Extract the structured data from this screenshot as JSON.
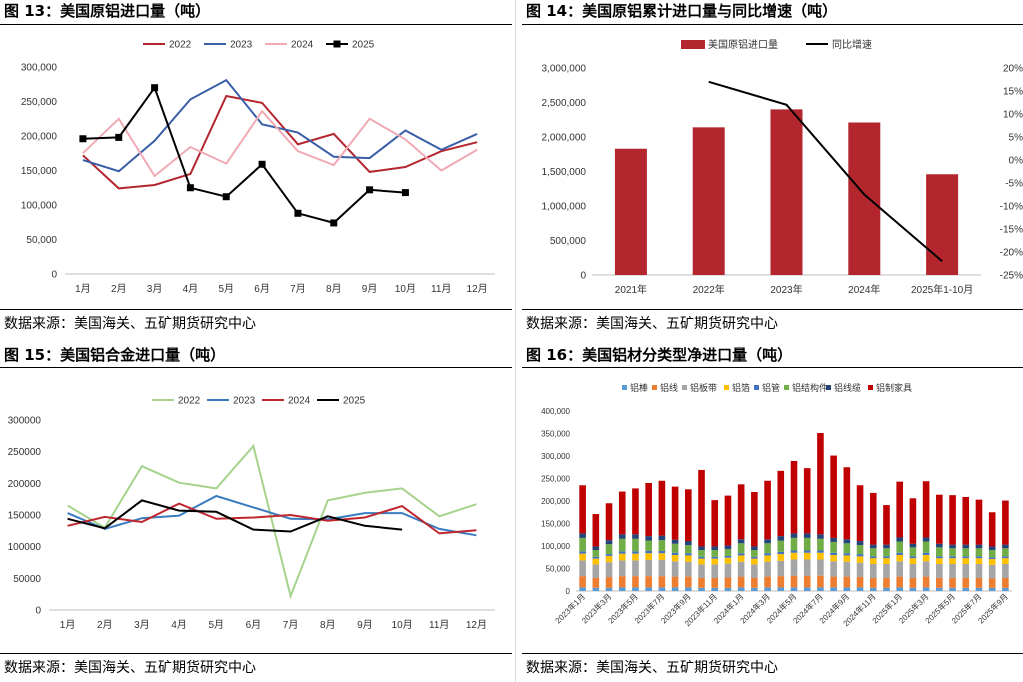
{
  "panels": {
    "p13": {
      "title": "图 13：美国原铝进口量（吨）",
      "source": "数据来源：美国海关、五矿期货研究中心"
    },
    "p14": {
      "title": "图 14：美国原铝累计进口量与同比增速（吨）",
      "source": "数据来源：美国海关、五矿期货研究中心"
    },
    "p15": {
      "title": "图 15：美国铝合金进口量（吨）",
      "source": "数据来源：美国海关、五矿期货研究中心"
    },
    "p16": {
      "title": "图 16：美国铝材分类型净进口量（吨）",
      "source": "数据来源：美国海关、五矿期货研究中心"
    }
  },
  "chart_data": [
    {
      "id": "c13",
      "type": "line",
      "categories": [
        "1月",
        "2月",
        "3月",
        "4月",
        "5月",
        "6月",
        "7月",
        "8月",
        "9月",
        "10月",
        "11月",
        "12月"
      ],
      "ylim": [
        0,
        300000
      ],
      "yticks": [
        "0",
        "50,000",
        "100,000",
        "150,000",
        "200,000",
        "250,000",
        "300,000"
      ],
      "legend_position": "top",
      "series": [
        {
          "name": "2022",
          "color": "#b3262e",
          "values": [
            172000,
            124000,
            129000,
            145000,
            258000,
            248000,
            188000,
            203000,
            148000,
            155000,
            178000,
            191000
          ]
        },
        {
          "name": "2023",
          "color": "#3a5ea8",
          "values": [
            165000,
            149000,
            193000,
            253000,
            281000,
            217000,
            205000,
            170000,
            168000,
            208000,
            180000,
            203000
          ]
        },
        {
          "name": "2024",
          "color": "#f0aab4",
          "values": [
            175000,
            225000,
            142000,
            184000,
            160000,
            236000,
            178000,
            158000,
            225000,
            195000,
            150000,
            180000
          ]
        },
        {
          "name": "2025",
          "color": "#000000",
          "marker": "square",
          "values": [
            196000,
            198000,
            270000,
            125000,
            112000,
            159000,
            88000,
            74000,
            122000,
            118000,
            null,
            null
          ]
        }
      ]
    },
    {
      "id": "c14",
      "type": "bar",
      "categories": [
        "2021年",
        "2022年",
        "2023年",
        "2024年",
        "2025年1-10月"
      ],
      "ylim": [
        0,
        3000000
      ],
      "yticks": [
        "0",
        "500,000",
        "1,000,000",
        "1,500,000",
        "2,000,000",
        "2,500,000",
        "3,000,000"
      ],
      "y2lim": [
        -25,
        20
      ],
      "y2ticks": [
        "-25%",
        "-20%",
        "-15%",
        "-10%",
        "-5%",
        "0%",
        "5%",
        "10%",
        "15%",
        "20%"
      ],
      "legend_position": "top",
      "series": [
        {
          "name": "美国原铝进口量",
          "color": "#b3262e",
          "type": "bar",
          "values": [
            1830000,
            2140000,
            2400000,
            2210000,
            1460000
          ]
        },
        {
          "name": "同比增速",
          "color": "#000000",
          "type": "line",
          "axis": "right",
          "values": [
            null,
            17,
            12,
            -7.5,
            -22
          ]
        }
      ]
    },
    {
      "id": "c15",
      "type": "line",
      "categories": [
        "1月",
        "2月",
        "3月",
        "4月",
        "5月",
        "6月",
        "7月",
        "8月",
        "9月",
        "10月",
        "11月",
        "12月"
      ],
      "ylim": [
        0,
        300000
      ],
      "yticks": [
        "0",
        "50000",
        "100000",
        "150000",
        "200000",
        "250000",
        "300000"
      ],
      "legend_position": "top",
      "series": [
        {
          "name": "2022",
          "color": "#a6d38b",
          "values": [
            165000,
            130000,
            227000,
            201000,
            192000,
            259000,
            22000,
            173000,
            185000,
            192000,
            148000,
            167000
          ]
        },
        {
          "name": "2023",
          "color": "#3a7cc0",
          "values": [
            153000,
            128000,
            145000,
            149000,
            180000,
            162000,
            144000,
            143000,
            153000,
            153000,
            128000,
            118000
          ]
        },
        {
          "name": "2024",
          "color": "#c0262e",
          "values": [
            133000,
            147000,
            139000,
            168000,
            144000,
            146000,
            150000,
            141000,
            146000,
            164000,
            121000,
            126000
          ]
        },
        {
          "name": "2025",
          "color": "#000000",
          "values": [
            144000,
            129000,
            173000,
            157000,
            155000,
            127000,
            124000,
            148000,
            133000,
            127000,
            null,
            null
          ]
        }
      ]
    },
    {
      "id": "c16",
      "type": "bar",
      "stacked": true,
      "categories": [
        "2023年1月",
        "2023年2月",
        "2023年3月",
        "2023年4月",
        "2023年5月",
        "2023年6月",
        "2023年7月",
        "2023年8月",
        "2023年9月",
        "2023年10月",
        "2023年11月",
        "2023年12月",
        "2024年1月",
        "2024年2月",
        "2024年3月",
        "2024年4月",
        "2024年5月",
        "2024年6月",
        "2024年7月",
        "2024年8月",
        "2024年9月",
        "2024年10月",
        "2024年11月",
        "2024年12月",
        "2025年1月",
        "2025年2月",
        "2025年3月",
        "2025年4月",
        "2025年5月",
        "2025年6月",
        "2025年7月",
        "2025年8月",
        "2025年9月"
      ],
      "xtick_labels": [
        "2023年1月",
        "2023年3月",
        "2023年5月",
        "2023年7月",
        "2023年9月",
        "2023年11月",
        "2024年1月",
        "2024年3月",
        "2024年5月",
        "2024年7月",
        "2024年9月",
        "2024年11月",
        "2025年1月",
        "2025年3月",
        "2025年5月",
        "2025年7月",
        "2025年9月"
      ],
      "ylim": [
        0,
        400000
      ],
      "yticks": [
        "0",
        "50,000",
        "100,000",
        "150,000",
        "200,000",
        "250,000",
        "300,000",
        "350,000",
        "400,000"
      ],
      "legend_position": "top",
      "series": [
        {
          "name": "铝棒",
          "color": "#5b9bd5",
          "values": [
            8000,
            7000,
            7000,
            8000,
            8000,
            8000,
            8000,
            8000,
            8000,
            7000,
            7000,
            7000,
            8000,
            7000,
            8000,
            8000,
            8000,
            8000,
            8000,
            8000,
            8000,
            8000,
            7000,
            7000,
            8000,
            7000,
            8000,
            7000,
            7000,
            7000,
            7000,
            7000,
            7000
          ]
        },
        {
          "name": "铝线",
          "color": "#ed7d31",
          "values": [
            25000,
            22000,
            24000,
            25000,
            25000,
            25000,
            25000,
            24000,
            24000,
            22000,
            22000,
            23000,
            24000,
            22000,
            24000,
            25000,
            26000,
            26000,
            26000,
            24000,
            24000,
            23000,
            22000,
            22000,
            24000,
            22000,
            24000,
            22000,
            22000,
            22000,
            22000,
            21000,
            22000
          ]
        },
        {
          "name": "铝板带",
          "color": "#a5a5a5",
          "values": [
            35000,
            30000,
            33000,
            35000,
            35000,
            36000,
            36000,
            34000,
            33000,
            30000,
            30000,
            31000,
            33000,
            30000,
            33000,
            34000,
            36000,
            36000,
            36000,
            34000,
            33000,
            32000,
            31000,
            31000,
            34000,
            31000,
            34000,
            31000,
            31000,
            31000,
            31000,
            30000,
            31000
          ]
        },
        {
          "name": "铝箔",
          "color": "#ffc000",
          "values": [
            15000,
            13000,
            14000,
            15000,
            15000,
            15000,
            15000,
            14000,
            14000,
            13000,
            13000,
            13000,
            14000,
            13000,
            14000,
            15000,
            15000,
            15000,
            15000,
            14000,
            14000,
            14000,
            13000,
            13000,
            14000,
            13000,
            14000,
            13000,
            13000,
            13000,
            13000,
            13000,
            13000
          ]
        },
        {
          "name": "铝管",
          "color": "#4472c4",
          "values": [
            5000,
            4000,
            4000,
            5000,
            5000,
            5000,
            5000,
            5000,
            5000,
            4000,
            4000,
            4000,
            5000,
            4000,
            5000,
            5000,
            5000,
            5000,
            5000,
            5000,
            5000,
            5000,
            4000,
            4000,
            5000,
            4000,
            5000,
            4000,
            4000,
            4000,
            4000,
            4000,
            4000
          ]
        },
        {
          "name": "铝结构件",
          "color": "#70ad47",
          "values": [
            30000,
            15000,
            22000,
            28000,
            28000,
            23000,
            24000,
            20000,
            18000,
            15000,
            15000,
            15000,
            22000,
            15000,
            22000,
            25000,
            28000,
            28000,
            26000,
            24000,
            22000,
            20000,
            18000,
            18000,
            25000,
            20000,
            25000,
            20000,
            18000,
            18000,
            18000,
            16000,
            18000
          ]
        },
        {
          "name": "铝线缆",
          "color": "#264478",
          "values": [
            10000,
            8000,
            9000,
            10000,
            10000,
            10000,
            10000,
            9000,
            9000,
            8000,
            8000,
            8000,
            9000,
            8000,
            9000,
            10000,
            10000,
            10000,
            10000,
            9000,
            9000,
            9000,
            8000,
            8000,
            9000,
            8000,
            9000,
            8000,
            8000,
            8000,
            8000,
            8000,
            8000
          ]
        },
        {
          "name": "铝制家具",
          "color": "#c00000",
          "values": [
            107000,
            72000,
            82000,
            95000,
            102000,
            118000,
            122000,
            118000,
            115000,
            170000,
            103000,
            111000,
            122000,
            121000,
            130000,
            145000,
            161000,
            145000,
            225000,
            183000,
            160000,
            124000,
            115000,
            88000,
            124000,
            101000,
            125000,
            109000,
            110000,
            106000,
            100000,
            76000,
            98000
          ]
        }
      ]
    }
  ]
}
